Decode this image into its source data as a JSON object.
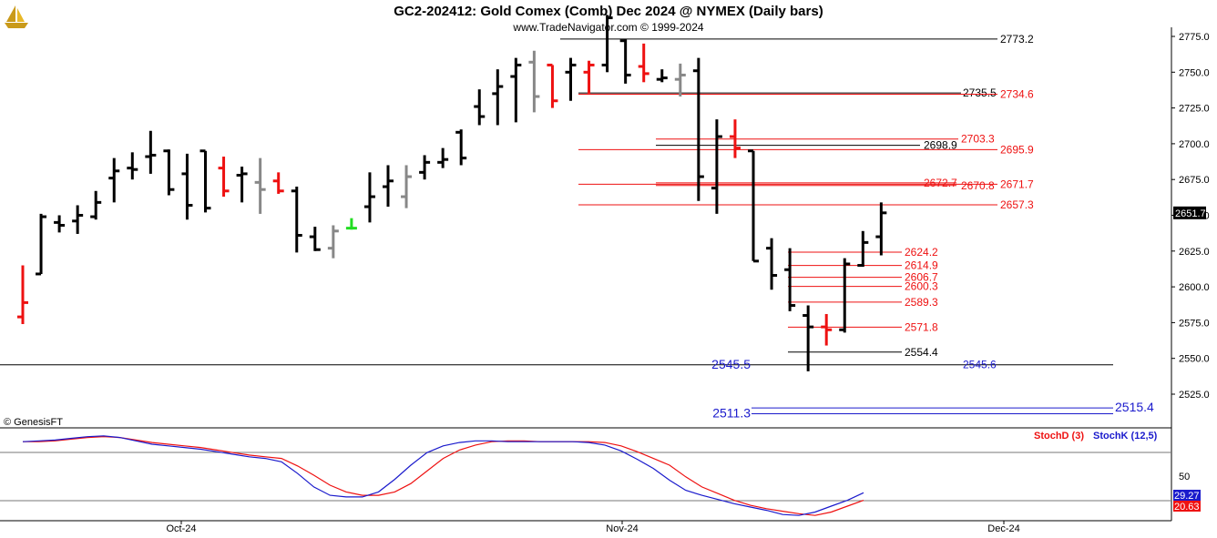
{
  "header": {
    "title": "GC2-202412:  Gold Comex (Comb) Dec 2024 @ NYMEX  (Daily bars)",
    "subtitle": "www.TradeNavigator.com © 1999-2024",
    "watermark": "© GenesisFT",
    "logo_icon": "sailboat-logo-icon"
  },
  "chart_data": [
    {
      "type": "ohlc",
      "ylim": [
        2505,
        2780
      ],
      "ticks": [
        "2775.0",
        "2750.0",
        "2725.0",
        "2700.0",
        "2675.0",
        "2650.0",
        "2625.0",
        "2600.0",
        "2575.0",
        "2550.0",
        "2525.0"
      ],
      "tick_values": [
        2775,
        2750,
        2725,
        2700,
        2675,
        2650,
        2625,
        2600,
        2575,
        2550,
        2525
      ],
      "last_price": "2651.7",
      "last_price_value": 2651.7,
      "colors": {
        "black": "#000000",
        "red": "#ee1111",
        "gray": "#888888",
        "green": "#22dd22"
      },
      "bars": [
        {
          "o": 2579,
          "h": 2615,
          "l": 2574,
          "c": 2589,
          "color": "red"
        },
        {
          "o": 2609,
          "h": 2651,
          "l": 2609,
          "c": 2649,
          "color": "black"
        },
        {
          "o": 2645,
          "h": 2650,
          "l": 2638,
          "c": 2643,
          "color": "black"
        },
        {
          "o": 2646,
          "h": 2657,
          "l": 2637,
          "c": 2650,
          "color": "black"
        },
        {
          "o": 2649,
          "h": 2667,
          "l": 2647,
          "c": 2659,
          "color": "black"
        },
        {
          "o": 2676,
          "h": 2690,
          "l": 2659,
          "c": 2681,
          "color": "black"
        },
        {
          "o": 2683,
          "h": 2694,
          "l": 2675,
          "c": 2682,
          "color": "black"
        },
        {
          "o": 2691,
          "h": 2709,
          "l": 2679,
          "c": 2692,
          "color": "black"
        },
        {
          "o": 2695,
          "h": 2696,
          "l": 2664,
          "c": 2668,
          "color": "black"
        },
        {
          "o": 2679,
          "h": 2693,
          "l": 2647,
          "c": 2657,
          "color": "black"
        },
        {
          "o": 2695,
          "h": 2695,
          "l": 2652,
          "c": 2655,
          "color": "black"
        },
        {
          "o": 2683,
          "h": 2691,
          "l": 2663,
          "c": 2667,
          "color": "red"
        },
        {
          "o": 2678,
          "h": 2684,
          "l": 2659,
          "c": 2679,
          "color": "black"
        },
        {
          "o": 2673,
          "h": 2690,
          "l": 2651,
          "c": 2668,
          "color": "gray"
        },
        {
          "o": 2674,
          "h": 2680,
          "l": 2665,
          "c": 2667,
          "color": "red"
        },
        {
          "o": 2667,
          "h": 2670,
          "l": 2624,
          "c": 2636,
          "color": "black"
        },
        {
          "o": 2635,
          "h": 2642,
          "l": 2625,
          "c": 2626,
          "color": "black"
        },
        {
          "o": 2627,
          "h": 2643,
          "l": 2620,
          "c": 2639,
          "color": "gray"
        },
        {
          "o": 2641,
          "h": 2648,
          "l": 2640,
          "c": 2641,
          "color": "green"
        },
        {
          "o": 2656,
          "h": 2680,
          "l": 2645,
          "c": 2663,
          "color": "black"
        },
        {
          "o": 2670,
          "h": 2685,
          "l": 2656,
          "c": 2674,
          "color": "black"
        },
        {
          "o": 2663,
          "h": 2685,
          "l": 2655,
          "c": 2677,
          "color": "gray"
        },
        {
          "o": 2680,
          "h": 2692,
          "l": 2675,
          "c": 2687,
          "color": "black"
        },
        {
          "o": 2687,
          "h": 2697,
          "l": 2683,
          "c": 2689,
          "color": "black"
        },
        {
          "o": 2708,
          "h": 2710,
          "l": 2685,
          "c": 2690,
          "color": "black"
        },
        {
          "o": 2726,
          "h": 2738,
          "l": 2713,
          "c": 2719,
          "color": "black"
        },
        {
          "o": 2735,
          "h": 2752,
          "l": 2713,
          "c": 2740,
          "color": "black"
        },
        {
          "o": 2747,
          "h": 2760,
          "l": 2715,
          "c": 2755,
          "color": "black"
        },
        {
          "o": 2757,
          "h": 2765,
          "l": 2722,
          "c": 2733,
          "color": "gray"
        },
        {
          "o": 2755,
          "h": 2755,
          "l": 2725,
          "c": 2730,
          "color": "red"
        },
        {
          "o": 2750,
          "h": 2760,
          "l": 2730,
          "c": 2755,
          "color": "black"
        },
        {
          "o": 2750,
          "h": 2758,
          "l": 2735,
          "c": 2755,
          "color": "red"
        },
        {
          "o": 2755,
          "h": 2790,
          "l": 2750,
          "c": 2788,
          "color": "black"
        },
        {
          "o": 2772,
          "h": 2773,
          "l": 2742,
          "c": 2748,
          "color": "black"
        },
        {
          "o": 2754,
          "h": 2770,
          "l": 2743,
          "c": 2749,
          "color": "red"
        },
        {
          "o": 2745,
          "h": 2752,
          "l": 2743,
          "c": 2746,
          "color": "black"
        },
        {
          "o": 2745,
          "h": 2756,
          "l": 2733,
          "c": 2748,
          "color": "gray"
        },
        {
          "o": 2751,
          "h": 2760,
          "l": 2660,
          "c": 2677,
          "color": "black"
        },
        {
          "o": 2669,
          "h": 2717,
          "l": 2651,
          "c": 2705,
          "color": "black"
        },
        {
          "o": 2705,
          "h": 2717,
          "l": 2690,
          "c": 2697,
          "color": "red"
        },
        {
          "o": 2695,
          "h": 2695,
          "l": 2618,
          "c": 2618,
          "color": "black"
        },
        {
          "o": 2627,
          "h": 2634,
          "l": 2598,
          "c": 2608,
          "color": "black"
        },
        {
          "o": 2612,
          "h": 2627,
          "l": 2583,
          "c": 2587,
          "color": "black"
        },
        {
          "o": 2580,
          "h": 2587,
          "l": 2541,
          "c": 2572,
          "color": "black"
        },
        {
          "o": 2572,
          "h": 2581,
          "l": 2559,
          "c": 2570,
          "color": "red"
        },
        {
          "o": 2570,
          "h": 2620,
          "l": 2568,
          "c": 2616,
          "color": "black"
        },
        {
          "o": 2615,
          "h": 2639,
          "l": 2614,
          "c": 2631,
          "color": "black"
        },
        {
          "o": 2635,
          "h": 2659,
          "l": 2622,
          "c": 2651.7,
          "color": "black"
        }
      ],
      "levels": [
        {
          "value": 2773.2,
          "label": "2773.2",
          "color": "#000000"
        },
        {
          "value": 2735.5,
          "label": "2735.5",
          "color": "#000000"
        },
        {
          "value": 2734.6,
          "label": "2734.6",
          "color": "#ee1111"
        },
        {
          "value": 2703.3,
          "label": "2703.3",
          "color": "#ee1111"
        },
        {
          "value": 2698.9,
          "label": "2698.9",
          "color": "#000000"
        },
        {
          "value": 2695.9,
          "label": "2695.9",
          "color": "#ee1111"
        },
        {
          "value": 2672.7,
          "label": "2672.7",
          "color": "#ee1111"
        },
        {
          "value": 2670.8,
          "label": "2670.8",
          "color": "#ee1111"
        },
        {
          "value": 2671.7,
          "label": "2671.7",
          "color": "#ee1111"
        },
        {
          "value": 2657.3,
          "label": "2657.3",
          "color": "#ee1111"
        },
        {
          "value": 2624.2,
          "label": "2624.2",
          "color": "#ee1111"
        },
        {
          "value": 2614.9,
          "label": "2614.9",
          "color": "#ee1111"
        },
        {
          "value": 2606.7,
          "label": "2606.7",
          "color": "#ee1111"
        },
        {
          "value": 2600.3,
          "label": "2600.3",
          "color": "#ee1111"
        },
        {
          "value": 2589.3,
          "label": "2589.3",
          "color": "#ee1111"
        },
        {
          "value": 2571.8,
          "label": "2571.8",
          "color": "#ee1111"
        },
        {
          "value": 2554.4,
          "label": "2554.4",
          "color": "#000000"
        },
        {
          "value": 2545.5,
          "label": "2545.5",
          "color": "#1a1acc"
        },
        {
          "value": 2545.6,
          "label": "2545.6",
          "color": "#1a1acc"
        },
        {
          "value": 2515.4,
          "label": "2515.4",
          "color": "#1a1acc"
        },
        {
          "value": 2511.3,
          "label": "2511.3",
          "color": "#1a1acc"
        }
      ]
    },
    {
      "type": "line",
      "ylim": [
        0,
        100
      ],
      "ticks": [
        "50"
      ],
      "tick_values": [
        50
      ],
      "legend": {
        "stoch_d": "StochD (3)",
        "stoch_k": "StochK (12,5)"
      },
      "last_values": {
        "k": "29.27",
        "d": "20.63"
      },
      "x_labels": [
        "Oct-24",
        "Nov-24",
        "Dec-24"
      ],
      "series": [
        {
          "name": "StochD (3)",
          "color": "#ee1111",
          "values": [
            90,
            90,
            91,
            93,
            95,
            96,
            95,
            92,
            89,
            87,
            85,
            83,
            80,
            77,
            74,
            72,
            70,
            61,
            50,
            38,
            30,
            26,
            26,
            30,
            40,
            55,
            70,
            80,
            86,
            90,
            91,
            91,
            90,
            90,
            90,
            90,
            89,
            85,
            78,
            70,
            62,
            48,
            36,
            28,
            20,
            14,
            10,
            7,
            4,
            2,
            6,
            13,
            20
          ]
        },
        {
          "name": "StochK (12,5)",
          "color": "#1a1acc",
          "values": [
            90,
            91,
            92,
            94,
            96,
            97,
            95,
            91,
            87,
            85,
            83,
            81,
            78,
            75,
            72,
            70,
            66,
            52,
            36,
            26,
            24,
            24,
            30,
            45,
            62,
            77,
            85,
            89,
            91,
            91,
            90,
            90,
            90,
            90,
            90,
            89,
            86,
            79,
            69,
            58,
            44,
            32,
            26,
            21,
            16,
            12,
            8,
            3,
            2,
            6,
            13,
            20,
            29
          ]
        }
      ]
    }
  ]
}
